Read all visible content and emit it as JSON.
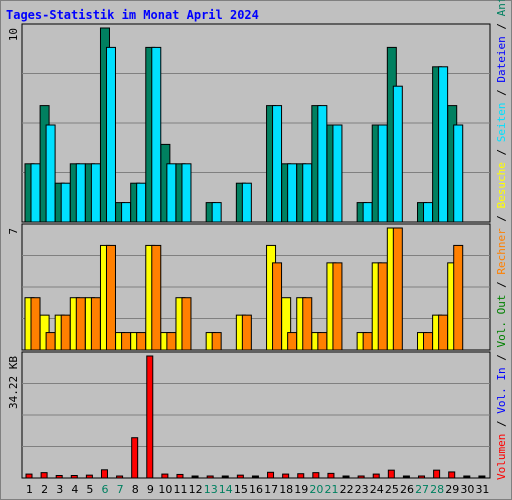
{
  "title": "Tages-Statistik im Monat April 2024",
  "right_legend": [
    {
      "text": "Volumen",
      "color": "#ff0000"
    },
    {
      "text": " / ",
      "color": "#000000"
    },
    {
      "text": "Vol. In",
      "color": "#0000ff"
    },
    {
      "text": " / ",
      "color": "#000000"
    },
    {
      "text": "Vol. Out",
      "color": "#008000"
    },
    {
      "text": " / ",
      "color": "#000000"
    },
    {
      "text": "Rechner",
      "color": "#ff8000"
    },
    {
      "text": " / ",
      "color": "#000000"
    },
    {
      "text": "Besuche",
      "color": "#ffff00"
    },
    {
      "text": " / ",
      "color": "#000000"
    },
    {
      "text": "Seiten",
      "color": "#00e0ff"
    },
    {
      "text": " / ",
      "color": "#000000"
    },
    {
      "text": "Dateien",
      "color": "#0000ff"
    },
    {
      "text": " / ",
      "color": "#000000"
    },
    {
      "text": "Anfragen",
      "color": "#008060"
    }
  ],
  "colors": {
    "background": "#c0c0c0",
    "plot_bg": "#c0c0c0",
    "anfragen": "#008060",
    "seiten": "#00e0ff",
    "besuche": "#ffff00",
    "rechner": "#ff8000",
    "volumen": "#ff0000",
    "title": "#0000ff",
    "weekend": "#008060"
  },
  "chart_data": [
    {
      "type": "bar",
      "panel": "requests",
      "ylabel": "10",
      "ylim": [
        0,
        10
      ],
      "categories": [
        "1",
        "2",
        "3",
        "4",
        "5",
        "6",
        "7",
        "8",
        "9",
        "10",
        "11",
        "12",
        "13",
        "14",
        "15",
        "16",
        "17",
        "18",
        "19",
        "20",
        "21",
        "22",
        "23",
        "24",
        "25",
        "26",
        "27",
        "28",
        "29",
        "30",
        "31"
      ],
      "series": [
        {
          "name": "Anfragen",
          "values": [
            3,
            6,
            2,
            3,
            3,
            10,
            1,
            2,
            9,
            4,
            3,
            0,
            1,
            0,
            2,
            0,
            6,
            3,
            3,
            6,
            5,
            0,
            1,
            5,
            9,
            0,
            1,
            8,
            6,
            0,
            0
          ]
        },
        {
          "name": "Seiten",
          "values": [
            3,
            5,
            2,
            3,
            3,
            9,
            1,
            2,
            9,
            3,
            3,
            0,
            1,
            0,
            2,
            0,
            6,
            3,
            3,
            6,
            5,
            0,
            1,
            5,
            7,
            0,
            1,
            8,
            5,
            0,
            0
          ]
        }
      ]
    },
    {
      "type": "bar",
      "panel": "visits",
      "ylabel": "7",
      "ylim": [
        0,
        7
      ],
      "series": [
        {
          "name": "Besuche",
          "values": [
            3,
            2,
            2,
            3,
            3,
            6,
            1,
            1,
            6,
            1,
            3,
            0,
            1,
            0,
            2,
            0,
            6,
            3,
            3,
            1,
            5,
            0,
            1,
            5,
            7,
            0,
            1,
            2,
            5,
            0,
            0
          ]
        },
        {
          "name": "Rechner",
          "values": [
            3,
            1,
            2,
            3,
            3,
            6,
            1,
            1,
            6,
            1,
            3,
            0,
            1,
            0,
            2,
            0,
            5,
            1,
            3,
            1,
            5,
            0,
            1,
            5,
            7,
            0,
            1,
            2,
            6,
            0,
            0
          ]
        }
      ]
    },
    {
      "type": "bar",
      "panel": "volume",
      "ylabel": "34.22 KB",
      "ylim": [
        0,
        34.22
      ],
      "series": [
        {
          "name": "Volumen",
          "values": [
            1.1,
            1.5,
            0.7,
            0.7,
            0.8,
            2.3,
            0.5,
            11.3,
            34.22,
            1.1,
            1.0,
            0,
            0.4,
            0,
            0.8,
            0,
            1.6,
            1.1,
            1.2,
            1.5,
            1.3,
            0,
            0.5,
            1.1,
            2.2,
            0,
            0.5,
            2.2,
            1.7,
            0,
            0
          ]
        }
      ]
    }
  ],
  "weekend_days": [
    6,
    7,
    13,
    14,
    20,
    21,
    27,
    28
  ]
}
